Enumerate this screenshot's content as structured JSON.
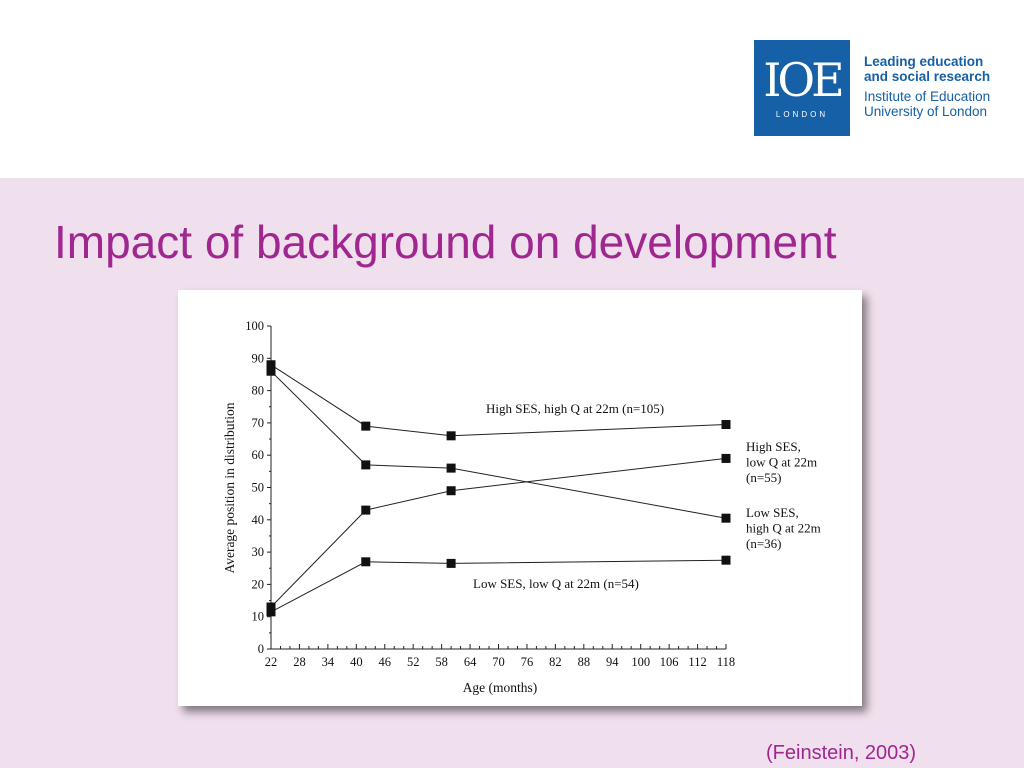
{
  "header": {
    "logo": {
      "icon": "ioe-logo",
      "mark": "IOE",
      "sub": "LONDON",
      "color": "#1560a6"
    },
    "tagline_bold": [
      "Leading education",
      "and social research"
    ],
    "tagline": [
      "Institute of Education",
      "University of London"
    ]
  },
  "slide": {
    "title": "Impact of background on development",
    "title_color": "#a0278f",
    "background": "#f0dfed",
    "citation": "(Feinstein, 2003)"
  },
  "chart_data": {
    "type": "line",
    "xlabel": "Age (months)",
    "ylabel": "Average position in distribution",
    "xlim": [
      22,
      118
    ],
    "ylim": [
      0,
      100
    ],
    "x_ticks": [
      22,
      28,
      34,
      40,
      46,
      52,
      58,
      64,
      70,
      76,
      82,
      88,
      94,
      100,
      106,
      112,
      118
    ],
    "y_ticks": [
      0,
      10,
      20,
      30,
      40,
      50,
      60,
      70,
      80,
      90,
      100
    ],
    "x": [
      22,
      42,
      60,
      118
    ],
    "series": [
      {
        "name": "High SES, high Q at 22m (n=105)",
        "values": [
          88,
          69,
          66,
          69.5
        ],
        "label_lines": [
          "High SES, high Q at 22m (n=105)"
        ]
      },
      {
        "name": "High SES, low Q at 22m (n=55)",
        "values": [
          13,
          43,
          49,
          59
        ],
        "label_lines": [
          "High SES,",
          "low Q at 22m",
          "(n=55)"
        ]
      },
      {
        "name": "Low SES, high Q at 22m (n=36)",
        "values": [
          86,
          57,
          56,
          40.5
        ],
        "label_lines": [
          "Low SES,",
          "high Q at 22m",
          "(n=36)"
        ]
      },
      {
        "name": "Low SES, low Q at 22m (n=54)",
        "values": [
          11.5,
          27,
          26.5,
          27.5
        ],
        "label_lines": [
          "Low SES, low Q at 22m (n=54)"
        ]
      }
    ],
    "grid": false,
    "legend": "inline labels"
  }
}
